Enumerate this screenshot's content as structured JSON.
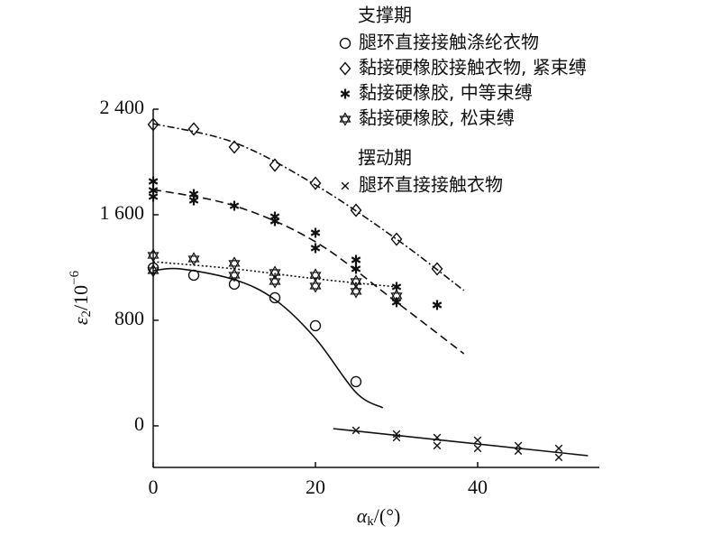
{
  "chart_data": {
    "type": "scatter",
    "x_label": {
      "symbol": "α",
      "subscript": "k",
      "unit": "/(°)"
    },
    "y_label": {
      "symbol": "ε",
      "subscript": "2",
      "unit": "/10",
      "superscript": "−6"
    },
    "xlim": [
      0,
      55
    ],
    "ylim": [
      -315,
      2400
    ],
    "xticks": [
      0,
      20,
      40
    ],
    "yticks": [
      0,
      800,
      {
        "value": 1600,
        "label": "1 600"
      },
      {
        "value": 2400,
        "label": "2 400"
      }
    ],
    "groups": [
      {
        "title": "支撑期",
        "series": [
          {
            "name": "腿环直接接触涤纶衣物",
            "color": "#111111",
            "marker": "circle",
            "line": "solid",
            "x": [
              0,
              5,
              10,
              15,
              20,
              25
            ],
            "values": [
              1197,
              1142,
              1074,
              971,
              759,
              335
            ],
            "fit_x": [
              0,
              3.3,
              10,
              15,
              20,
              25,
              28.3
            ],
            "fit_values": [
              1176,
              1190,
              1108,
              957,
              663,
              253,
              137
            ]
          },
          {
            "name": "黏接硬橡胶接触衣物, 紧束缚",
            "color": "#111111",
            "marker": "diamond",
            "line": "dashdot",
            "x": [
              0,
              5,
              10,
              15,
              20,
              25,
              30,
              35
            ],
            "values": [
              2284,
              2250,
              2113,
              1976,
              1839,
              1634,
              1415,
              1190
            ],
            "fit_x": [
              0,
              10,
              20,
              30,
              38.3
            ],
            "fit_values": [
              2290,
              2147,
              1826,
              1415,
              1026
            ]
          },
          {
            "name": "黏接硬橡胶, 中等束缚",
            "color": "#111111",
            "marker": "asterisk",
            "line": "dashed",
            "x": [
              0,
              0,
              0,
              5,
              5,
              10,
              15,
              15,
              20,
              20,
              25,
              25,
              30,
              30,
              35
            ],
            "values": [
              1853,
              1785,
              1737,
              1757,
              1709,
              1668,
              1586,
              1552,
              1463,
              1347,
              1258,
              1190,
              1053,
              937,
              916
            ],
            "fit_x": [
              0,
              10,
              20,
              30,
              38.3
            ],
            "fit_values": [
              1791,
              1668,
              1395,
              937,
              547
            ]
          },
          {
            "name": "黏接硬橡胶, 松束缚",
            "color": "#111111",
            "marker": "star",
            "line": "dotted",
            "x": [
              0,
              0,
              5,
              10,
              10,
              15,
              15,
              20,
              20,
              25,
              25,
              30
            ],
            "values": [
              1292,
              1176,
              1265,
              1231,
              1142,
              1162,
              1094,
              1142,
              1060,
              1094,
              1019,
              985
            ],
            "fit_x": [
              0,
              10,
              20,
              30
            ],
            "fit_values": [
              1244,
              1190,
              1115,
              1053
            ]
          }
        ]
      },
      {
        "title": "摆动期",
        "series": [
          {
            "name": "腿环直接接触衣物",
            "color": "#111111",
            "marker": "x",
            "line": "solid",
            "x": [
              25,
              30,
              30,
              35,
              35,
              40,
              40,
              45,
              45,
              50,
              50
            ],
            "values": [
              -34,
              -62,
              -89,
              -89,
              -150,
              -109,
              -171,
              -150,
              -191,
              -171,
              -239
            ],
            "fit_x": [
              22.2,
              53.6
            ],
            "fit_values": [
              -21,
              -226
            ]
          }
        ]
      }
    ]
  }
}
